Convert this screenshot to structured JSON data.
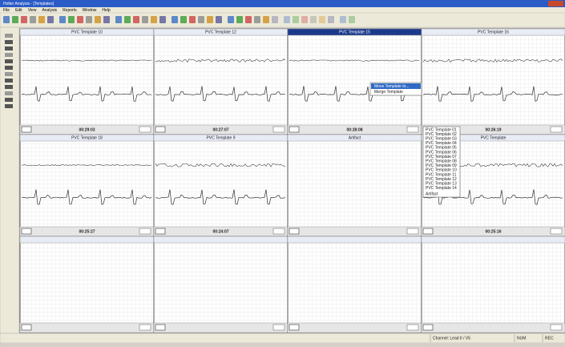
{
  "window": {
    "title": "Holter Analysis - [Templates]"
  },
  "menu": [
    "File",
    "Edit",
    "View",
    "Analysis",
    "Reports",
    "Window",
    "Help"
  ],
  "panels": [
    {
      "title": "PVC Template 10",
      "time": "00:29:03"
    },
    {
      "title": "PVC Template 12",
      "time": "00:27:07"
    },
    {
      "title": "PVC Template 15",
      "time": "00:28:08"
    },
    {
      "title": "PVC Template 16",
      "time": "00:26:19"
    },
    {
      "title": "PVC Template 18",
      "time": "00:25:27"
    },
    {
      "title": "PVC Template 9",
      "time": "00:24:07"
    },
    {
      "title": "Artifact"
    },
    {
      "title": "PVC Template",
      "time": "00:25:16"
    },
    {},
    {},
    {},
    {}
  ],
  "context_menu": [
    "Move Template to...",
    "Merge Template"
  ],
  "submenu": [
    "PVC Template 01",
    "PVC Template 02",
    "PVC Template 03",
    "PVC Template 04",
    "PVC Template 05",
    "PVC Template 06",
    "PVC Template 07",
    "PVC Template 08",
    "PVC Template 09",
    "PVC Template 10",
    "PVC Template 11",
    "PVC Template 12",
    "PVC Template 13",
    "PVC Template 14",
    "Artifact"
  ],
  "status": [
    "Channel: Lead II / V5",
    "NUM",
    "REC"
  ]
}
